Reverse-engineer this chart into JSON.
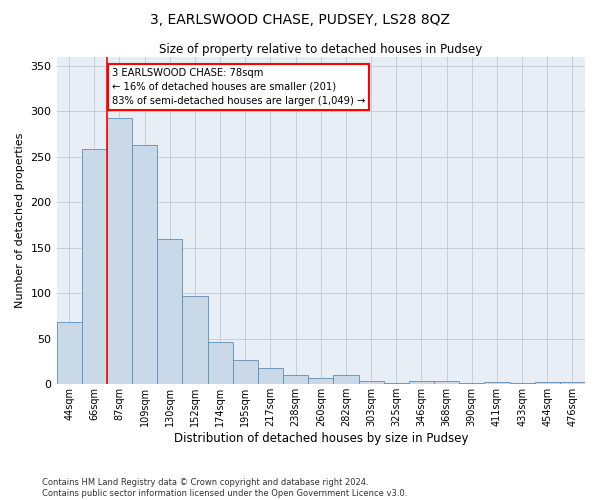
{
  "title": "3, EARLSWOOD CHASE, PUDSEY, LS28 8QZ",
  "subtitle": "Size of property relative to detached houses in Pudsey",
  "xlabel": "Distribution of detached houses by size in Pudsey",
  "ylabel": "Number of detached properties",
  "footer_line1": "Contains HM Land Registry data © Crown copyright and database right 2024.",
  "footer_line2": "Contains public sector information licensed under the Open Government Licence v3.0.",
  "categories": [
    "44sqm",
    "66sqm",
    "87sqm",
    "109sqm",
    "130sqm",
    "152sqm",
    "174sqm",
    "195sqm",
    "217sqm",
    "238sqm",
    "260sqm",
    "282sqm",
    "303sqm",
    "325sqm",
    "346sqm",
    "368sqm",
    "390sqm",
    "411sqm",
    "433sqm",
    "454sqm",
    "476sqm"
  ],
  "values": [
    68,
    258,
    293,
    263,
    160,
    97,
    46,
    27,
    18,
    10,
    7,
    10,
    4,
    1,
    4,
    4,
    1,
    3,
    1,
    3,
    3
  ],
  "bar_color": "#c9d9e8",
  "bar_edge_color": "#5b8db8",
  "grid_color": "#c0c8d8",
  "background_color": "#e8eef5",
  "annotation_text": "3 EARLSWOOD CHASE: 78sqm\n← 16% of detached houses are smaller (201)\n83% of semi-detached houses are larger (1,049) →",
  "annotation_box_color": "white",
  "annotation_box_edge_color": "red",
  "vline_color": "red",
  "vline_x": 1.5,
  "ylim": [
    0,
    360
  ],
  "yticks": [
    0,
    50,
    100,
    150,
    200,
    250,
    300,
    350
  ]
}
